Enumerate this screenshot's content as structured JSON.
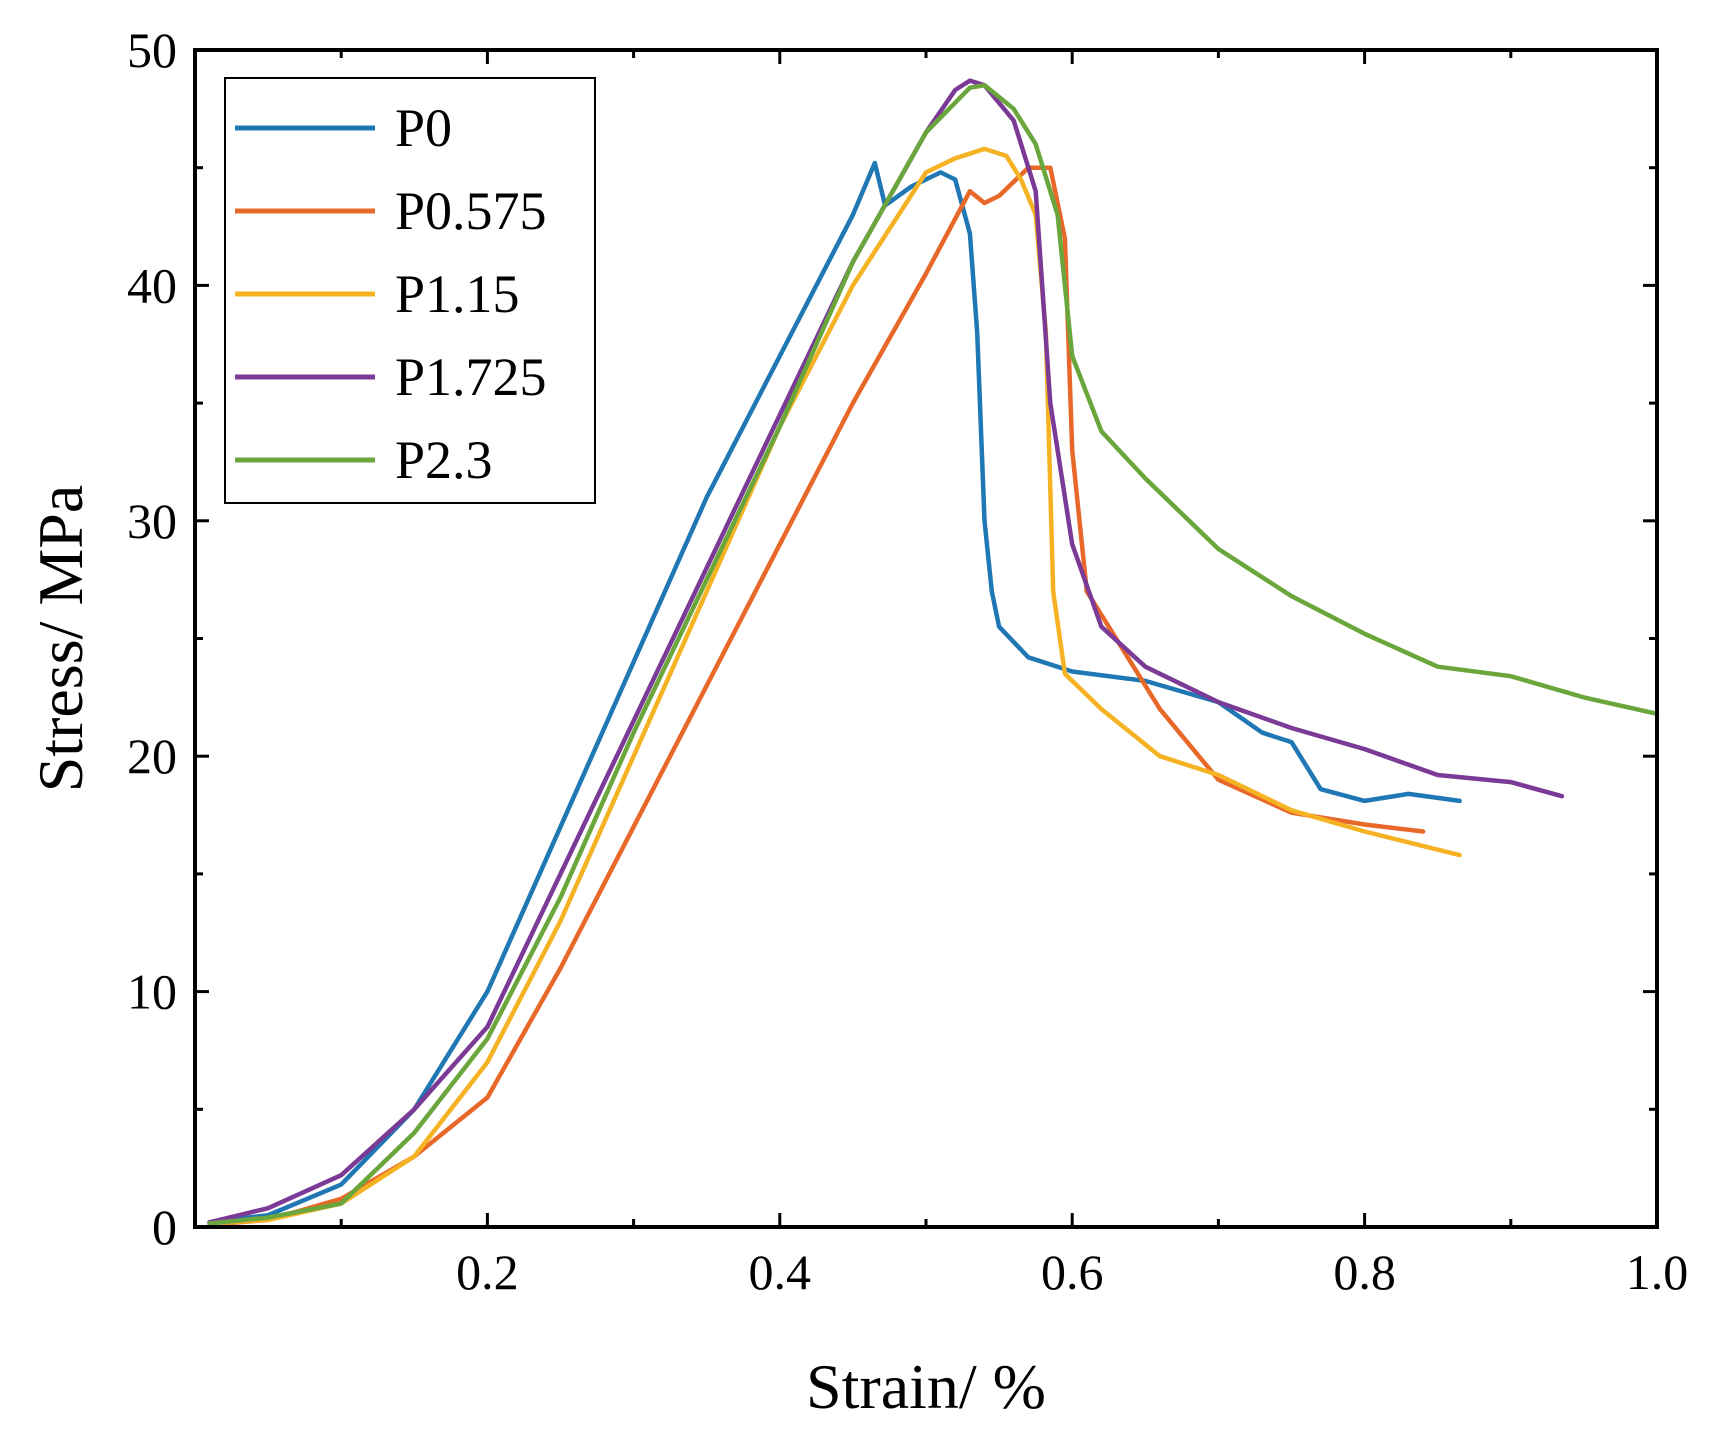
{
  "chart_data": {
    "type": "line",
    "title": "",
    "xlabel": "Strain/ %",
    "ylabel": "Stress/ MPa",
    "xlim": [
      0.0,
      1.0
    ],
    "ylim": [
      0,
      50
    ],
    "x_ticks": [
      0.2,
      0.4,
      0.6,
      0.8,
      1.0
    ],
    "x_tick_labels": [
      "0.2",
      "0.4",
      "0.6",
      "0.8",
      "1.0"
    ],
    "y_ticks": [
      0,
      10,
      20,
      30,
      40,
      50
    ],
    "y_tick_labels": [
      "0",
      "10",
      "20",
      "30",
      "40",
      "50"
    ],
    "grid": false,
    "legend_position": "top-left",
    "series": [
      {
        "name": "P0",
        "color": "#1f77b4",
        "x": [
          0.01,
          0.05,
          0.1,
          0.15,
          0.2,
          0.25,
          0.3,
          0.35,
          0.4,
          0.45,
          0.465,
          0.472,
          0.49,
          0.51,
          0.52,
          0.53,
          0.535,
          0.54,
          0.545,
          0.55,
          0.57,
          0.6,
          0.65,
          0.7,
          0.73,
          0.75,
          0.77,
          0.8,
          0.83,
          0.865
        ],
        "y": [
          0.2,
          0.5,
          1.8,
          5,
          10,
          17,
          24,
          31,
          37,
          43,
          45.2,
          43.4,
          44.2,
          44.8,
          44.5,
          42.2,
          38,
          30,
          27,
          25.5,
          24.2,
          23.6,
          23.2,
          22.3,
          21,
          20.6,
          18.6,
          18.1,
          18.4,
          18.1
        ]
      },
      {
        "name": "P0.575",
        "color": "#e8682a",
        "x": [
          0.01,
          0.05,
          0.1,
          0.15,
          0.2,
          0.25,
          0.3,
          0.35,
          0.4,
          0.45,
          0.5,
          0.53,
          0.54,
          0.55,
          0.57,
          0.585,
          0.595,
          0.6,
          0.61,
          0.63,
          0.66,
          0.7,
          0.75,
          0.8,
          0.84
        ],
        "y": [
          0.1,
          0.3,
          1.2,
          3,
          5.5,
          11,
          17,
          23,
          29,
          35,
          40.5,
          44,
          43.5,
          43.8,
          45,
          45,
          42,
          33,
          27,
          25,
          22,
          19,
          17.6,
          17.1,
          16.8
        ]
      },
      {
        "name": "P1.15",
        "color": "#f5b324",
        "x": [
          0.01,
          0.05,
          0.1,
          0.15,
          0.2,
          0.25,
          0.3,
          0.35,
          0.4,
          0.45,
          0.5,
          0.52,
          0.54,
          0.555,
          0.565,
          0.575,
          0.582,
          0.587,
          0.595,
          0.62,
          0.66,
          0.7,
          0.75,
          0.8,
          0.865
        ],
        "y": [
          0.15,
          0.3,
          1,
          3,
          7,
          13,
          20,
          27,
          34,
          40,
          44.8,
          45.4,
          45.8,
          45.5,
          44.5,
          43,
          38,
          27,
          23.5,
          22,
          20,
          19.2,
          17.7,
          16.8,
          15.8
        ]
      },
      {
        "name": "P1.725",
        "color": "#7b3a96",
        "x": [
          0.01,
          0.05,
          0.1,
          0.15,
          0.2,
          0.25,
          0.3,
          0.35,
          0.4,
          0.45,
          0.5,
          0.52,
          0.53,
          0.54,
          0.56,
          0.575,
          0.585,
          0.6,
          0.62,
          0.65,
          0.7,
          0.75,
          0.8,
          0.85,
          0.9,
          0.935
        ],
        "y": [
          0.2,
          0.8,
          2.2,
          5,
          8.5,
          15,
          21.5,
          28,
          34.5,
          41,
          46.5,
          48.3,
          48.7,
          48.5,
          47,
          44,
          35,
          29,
          25.5,
          23.8,
          22.3,
          21.2,
          20.3,
          19.2,
          18.9,
          18.3
        ]
      },
      {
        "name": "P2.3",
        "color": "#6aa63b",
        "x": [
          0.01,
          0.05,
          0.1,
          0.15,
          0.2,
          0.25,
          0.3,
          0.35,
          0.4,
          0.45,
          0.5,
          0.53,
          0.54,
          0.56,
          0.575,
          0.59,
          0.6,
          0.62,
          0.65,
          0.7,
          0.75,
          0.8,
          0.85,
          0.9,
          0.95,
          1.0
        ],
        "y": [
          0.15,
          0.4,
          1,
          4,
          8,
          14,
          21,
          27.5,
          34,
          41,
          46.5,
          48.4,
          48.5,
          47.5,
          46,
          43,
          37,
          33.8,
          31.8,
          28.8,
          26.8,
          25.2,
          23.8,
          23.4,
          22.5,
          21.8
        ]
      }
    ]
  }
}
